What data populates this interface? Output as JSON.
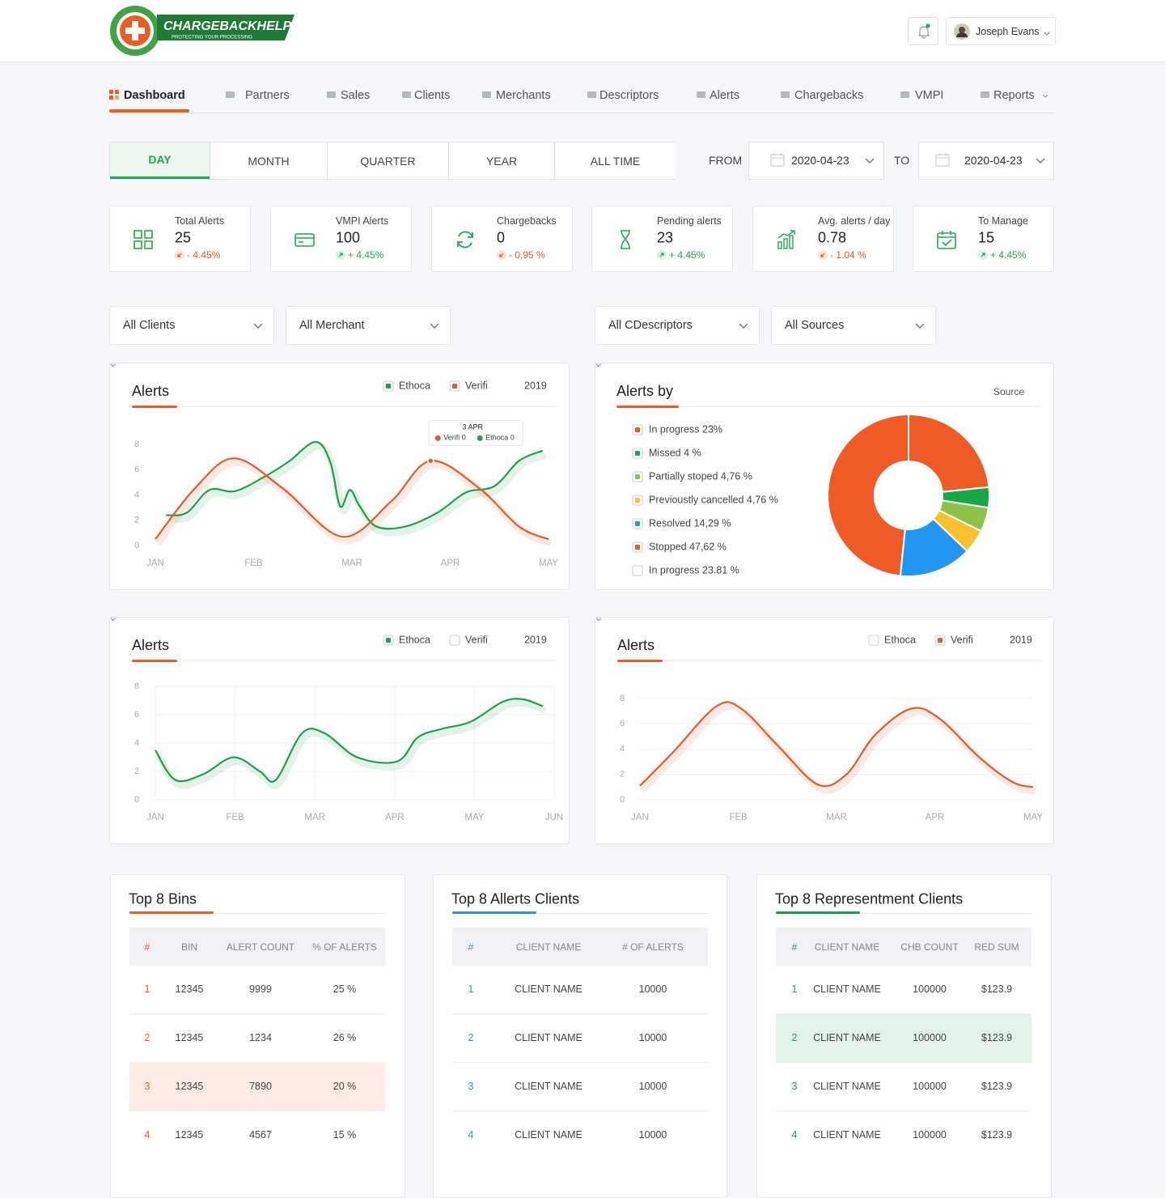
{
  "header": {
    "logo": "CHARGEBACKHELP",
    "tagline": "PROTECTING YOUR PROCESSING",
    "user": "Joseph Evans"
  },
  "nav": {
    "items": [
      "Dashboard",
      "Partners",
      "Sales",
      "Clients",
      "Merchants",
      "Descriptors",
      "Alerts",
      "Chargebacks",
      "VMPI",
      "Reports"
    ],
    "active": 0
  },
  "periods": {
    "items": [
      "DAY",
      "MONTH",
      "QUARTER",
      "YEAR",
      "ALL TIME"
    ],
    "active": 0
  },
  "date_range": {
    "from_label": "FROM",
    "from": "2020-04-23",
    "to_label": "TO",
    "to": "2020-04-23"
  },
  "stats": [
    {
      "label": "Total Alerts",
      "value": 25,
      "change": "- 4.45%"
    },
    {
      "label": "VMPI Alerts",
      "value": 100,
      "change": "+ 4.45%"
    },
    {
      "label": "Chargebacks",
      "value": 0,
      "change": "- 0,95 %"
    },
    {
      "label": "Pending alerts",
      "value": 23,
      "change": "+ 4.45%"
    },
    {
      "label": "Avg. alerts / day",
      "value": 0.78,
      "change": "- 1.04 %"
    },
    {
      "label": "To Manage",
      "value": 15,
      "change": "+ 4.45%"
    }
  ],
  "filters": [
    "All Clients",
    "All Merchant",
    "All CDescriptors",
    "All Sources"
  ],
  "chart_data": [
    {
      "type": "line",
      "title": "Alerts",
      "selector": "2019",
      "xlim": [
        0,
        4
      ],
      "ylim": [
        0,
        8
      ],
      "yticks": [
        0,
        2,
        4,
        6,
        8
      ],
      "grid": false,
      "xticks": [
        {
          "value": 0,
          "label": "JAN"
        },
        {
          "value": 1,
          "label": "FEB"
        },
        {
          "value": 2,
          "label": "MAR"
        },
        {
          "value": 3,
          "label": "APR"
        },
        {
          "value": 4,
          "label": "MAY"
        }
      ],
      "series": [
        {
          "name": "Ethoca",
          "color": "#1fa04a",
          "checked": true,
          "x": [
            0.11,
            0.32,
            0.55,
            0.81,
            1.1,
            1.35,
            1.63,
            1.78,
            1.88,
            1.98,
            2.08,
            2.25,
            2.54,
            2.87,
            3.16,
            3.45,
            3.7,
            3.94
          ],
          "values": [
            2.4,
            2.6,
            4.4,
            4.3,
            5.4,
            6.6,
            8.2,
            6.6,
            3.1,
            4.4,
            3.1,
            1.5,
            1.5,
            2.6,
            4.2,
            4.7,
            6.7,
            7.5
          ]
        },
        {
          "name": "Verifi",
          "color": "#e8592a",
          "checked": true,
          "x": [
            0,
            0.4,
            0.8,
            1.3,
            1.9,
            2.4,
            2.8,
            3.3,
            3.7,
            4
          ],
          "values": [
            0.5,
            4.5,
            6.9,
            4.5,
            0.7,
            3.5,
            6.7,
            4.5,
            1.5,
            0.5
          ]
        }
      ],
      "tooltip": {
        "title": "3 APR",
        "items": [
          "Verifi 0",
          "Ethoca 0"
        ]
      }
    },
    {
      "type": "donut",
      "title": "Alerts by",
      "selector": "Source",
      "values": [
        23,
        4,
        4.76,
        4.76,
        14.29,
        47.62,
        23.81
      ],
      "value_labels": [
        "In progress 23%",
        "Missed 4 %",
        "Partially stoped 4,76 %",
        "Previoustly cancelled 4,76 %",
        "Resolved 14,29 %",
        "Stopped 47,62 %",
        "In progress 23.81 %"
      ],
      "colors": [
        "#ef5b25",
        "#17a84a",
        "#8bc34a",
        "#fbc02d",
        "#2196f3",
        "#ef5b25",
        "#ffffff"
      ],
      "checked": [
        true,
        true,
        true,
        true,
        true,
        true,
        false
      ]
    },
    {
      "type": "line",
      "title": "Alerts",
      "selector": "2019",
      "xlim": [
        0,
        5
      ],
      "ylim": [
        0,
        8
      ],
      "yticks": [
        0,
        2,
        4,
        6,
        8
      ],
      "grid": true,
      "xticks": [
        {
          "value": 0,
          "label": "JAN"
        },
        {
          "value": 1,
          "label": "FEB"
        },
        {
          "value": 2,
          "label": "MAR"
        },
        {
          "value": 3,
          "label": "APR"
        },
        {
          "value": 4,
          "label": "MAY"
        },
        {
          "value": 5,
          "label": "JUN"
        }
      ],
      "series": [
        {
          "name": "Ethoca",
          "color": "#1fa04a",
          "checked": true,
          "x": [
            0,
            0.25,
            0.6,
            0.98,
            1.31,
            1.51,
            1.84,
            2.12,
            2.53,
            3.03,
            3.29,
            3.59,
            3.95,
            4.35,
            4.6,
            4.86
          ],
          "values": [
            3.5,
            1.4,
            1.8,
            3,
            2,
            1.4,
            4.7,
            4.7,
            3,
            2.7,
            4.4,
            5,
            5.5,
            6.9,
            7.1,
            6.6
          ]
        },
        {
          "name": "Verifi",
          "color": "#e8592a",
          "checked": false
        }
      ]
    },
    {
      "type": "line",
      "title": "Alerts",
      "selector": "2019",
      "xlim": [
        0,
        4
      ],
      "ylim": [
        0,
        8
      ],
      "yticks": [
        0,
        2,
        4,
        6,
        8
      ],
      "grid": true,
      "xticks": [
        {
          "value": 0,
          "label": "JAN"
        },
        {
          "value": 1,
          "label": "FEB"
        },
        {
          "value": 2,
          "label": "MAR"
        },
        {
          "value": 3,
          "label": "APR"
        },
        {
          "value": 4,
          "label": "MAY"
        }
      ],
      "series": [
        {
          "name": "Ethoca",
          "color": "#1fa04a",
          "checked": false
        },
        {
          "name": "Verifi",
          "color": "#e8592a",
          "checked": true,
          "x": [
            0,
            0.33,
            0.78,
            1.03,
            1.4,
            1.81,
            2.1,
            2.39,
            2.76,
            3.05,
            3.46,
            3.79,
            4
          ],
          "values": [
            1.1,
            3.7,
            7.4,
            7.2,
            4.3,
            1.2,
            2,
            5.1,
            7.2,
            6.4,
            3.3,
            1.4,
            1
          ]
        }
      ]
    }
  ],
  "tables": [
    {
      "title": "Top 8 Bins",
      "accent": "#ef5b25",
      "highlight": 2,
      "columns": [
        "#",
        "BIN",
        "ALERT COUNT",
        "% OF ALERTS"
      ],
      "rows": [
        [
          "1",
          "12345",
          "9999",
          "25 %"
        ],
        [
          "2",
          "12345",
          "1234",
          "26 %"
        ],
        [
          "3",
          "12345",
          "7890",
          "20 %"
        ],
        [
          "4",
          "12345",
          "4567",
          "15 %"
        ]
      ]
    },
    {
      "title": "Top 8 Allerts Clients",
      "accent": "#2f8fe0",
      "columns": [
        "#",
        "CLIENT NAME",
        "# OF ALERTS"
      ],
      "rows": [
        [
          "1",
          "CLIENT NAME",
          "10000"
        ],
        [
          "2",
          "CLIENT NAME",
          "10000"
        ],
        [
          "3",
          "CLIENT NAME",
          "10000"
        ],
        [
          "4",
          "CLIENT NAME",
          "10000"
        ]
      ]
    },
    {
      "title": "Top 8 Representment Clients",
      "accent": "#1e9e4a",
      "highlight": 1,
      "columns": [
        "#",
        "CLIENT NAME",
        "CHB COUNT",
        "RED SUM"
      ],
      "rows": [
        [
          "1",
          "CLIENT NAME",
          "100000",
          "$123.9"
        ],
        [
          "2",
          "CLIENT NAME",
          "100000",
          "$123.9"
        ],
        [
          "3",
          "CLIENT NAME",
          "100000",
          "$123.9"
        ],
        [
          "4",
          "CLIENT NAME",
          "100000",
          "$123.9"
        ]
      ]
    }
  ]
}
